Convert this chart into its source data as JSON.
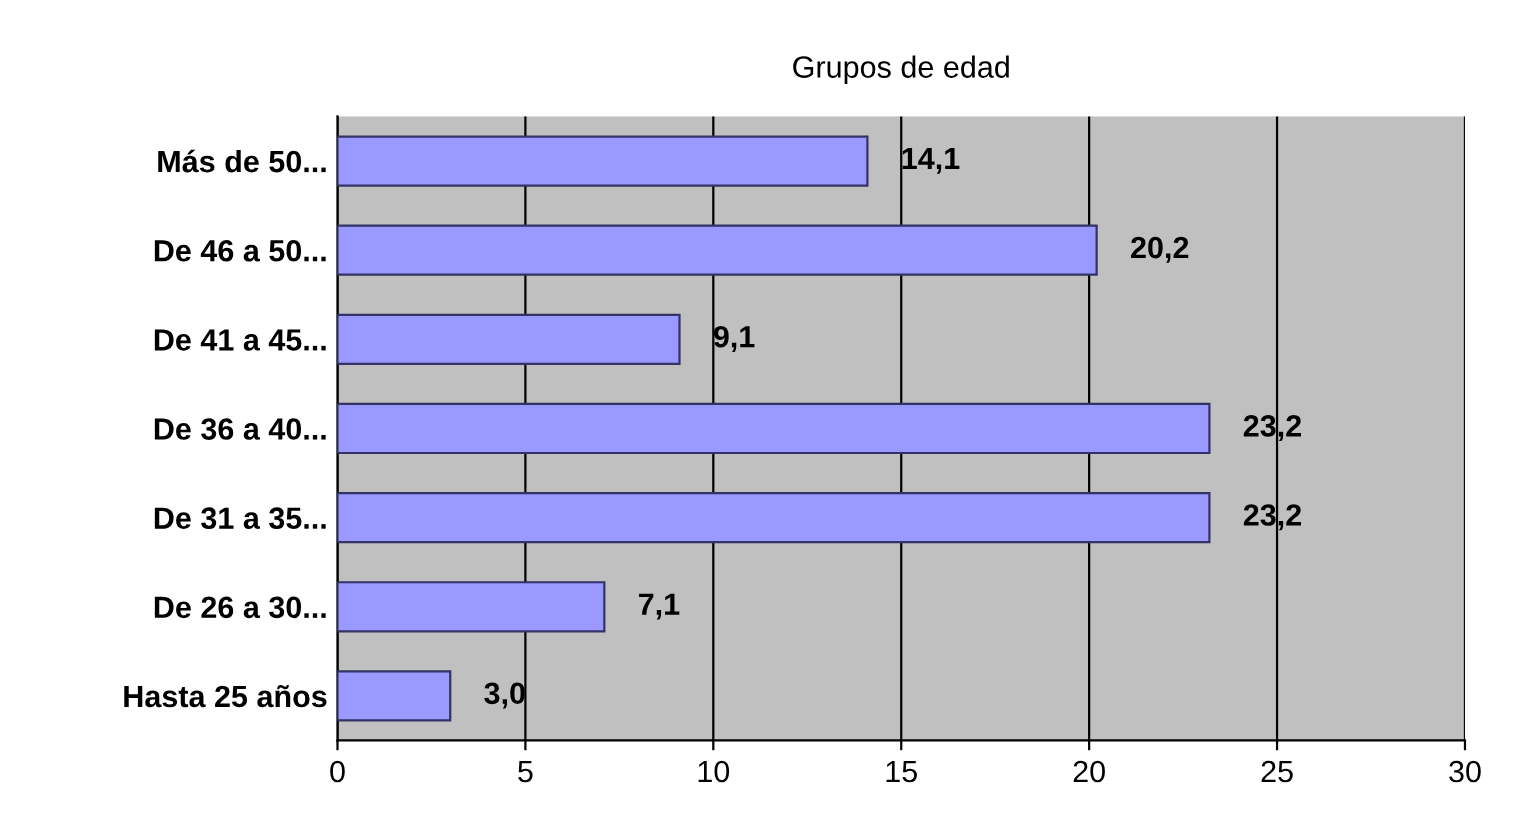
{
  "chart_data": {
    "type": "bar",
    "orientation": "horizontal",
    "title": "Grupos de edad",
    "categories": [
      "Más de 50...",
      "De 46 a 50...",
      "De 41 a 45...",
      "De 36 a 40...",
      "De 31 a 35...",
      "De 26 a 30...",
      "Hasta 25 años"
    ],
    "values": [
      14.1,
      20.2,
      9.1,
      23.2,
      23.2,
      7.1,
      3.0
    ],
    "value_labels": [
      "14,1",
      "20,2",
      "9,1",
      "23,2",
      "23,2",
      "7,1",
      "3,0"
    ],
    "color": "#9999ff",
    "xlim": [
      0,
      30
    ],
    "xticks": [
      0,
      5,
      10,
      15,
      20,
      25,
      30
    ],
    "grid": "x",
    "legend": false
  }
}
